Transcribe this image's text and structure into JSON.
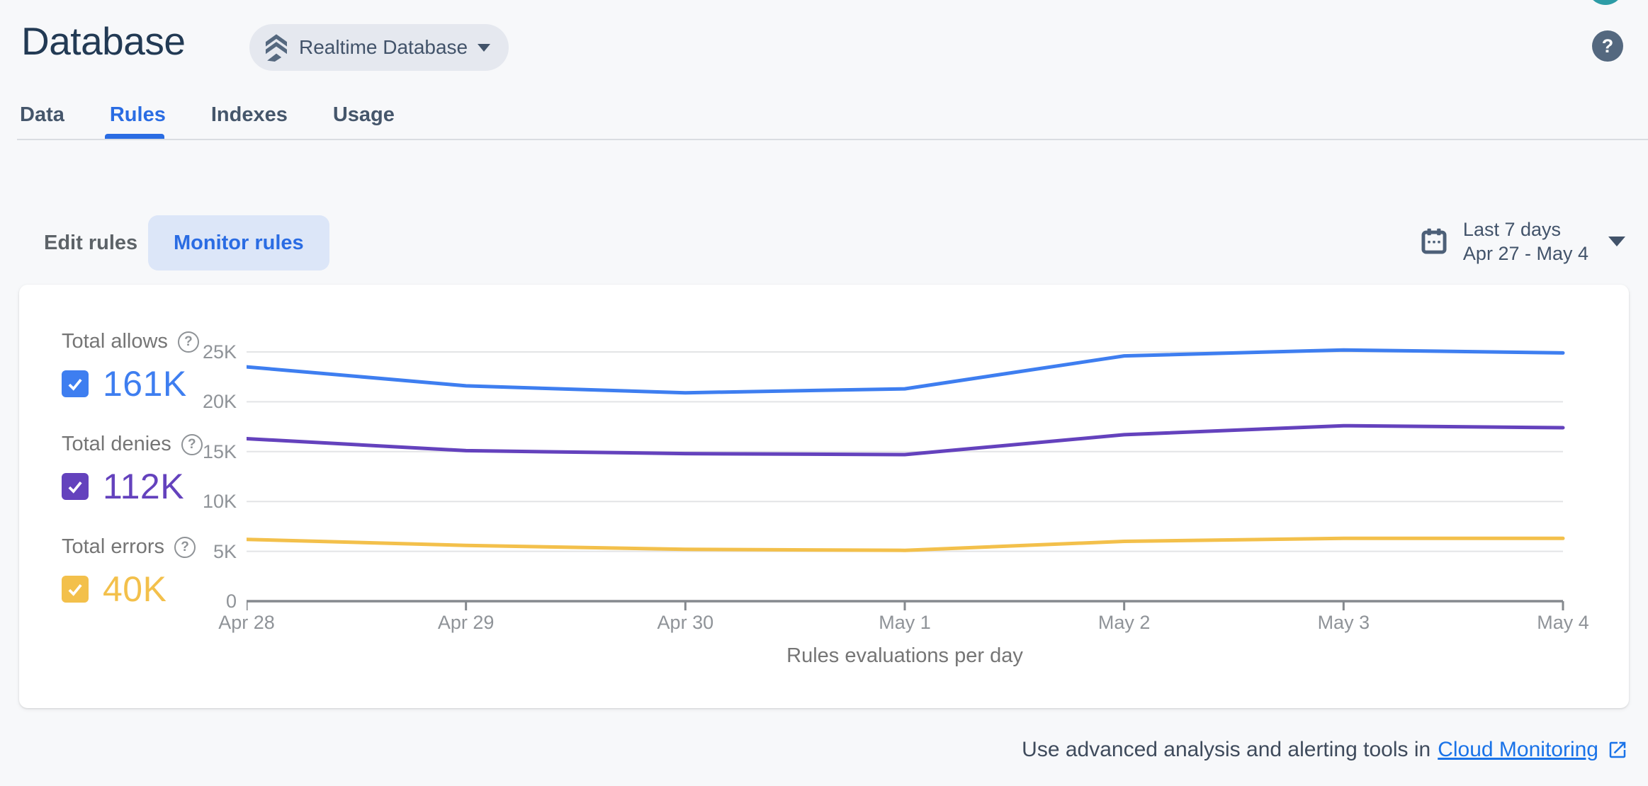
{
  "header": {
    "title": "Database",
    "selector_label": "Realtime Database",
    "help_glyph": "?"
  },
  "tabs": [
    {
      "label": "Data",
      "active": false
    },
    {
      "label": "Rules",
      "active": true
    },
    {
      "label": "Indexes",
      "active": false
    },
    {
      "label": "Usage",
      "active": false
    }
  ],
  "toolbar": {
    "edit_rules_label": "Edit rules",
    "monitor_rules_label": "Monitor rules",
    "date_range": {
      "label": "Last 7 days",
      "range": "Apr 27 - May 4"
    }
  },
  "legend": [
    {
      "label": "Total allows",
      "value": "161K",
      "color": "#3e7ef0",
      "checked": true
    },
    {
      "label": "Total denies",
      "value": "112K",
      "color": "#6442bd",
      "checked": true
    },
    {
      "label": "Total errors",
      "value": "40K",
      "color": "#f3c04b",
      "checked": true
    }
  ],
  "chart_data": {
    "type": "line",
    "title": "Rules evaluations per day",
    "x": [
      "Apr 28",
      "Apr 29",
      "Apr 30",
      "May 1",
      "May 2",
      "May 3",
      "May 4"
    ],
    "unit": "thousands of evaluations",
    "ylim": [
      0,
      25
    ],
    "yticks": [
      {
        "label": "0",
        "value": 0
      },
      {
        "label": "5K",
        "value": 5
      },
      {
        "label": "10K",
        "value": 10
      },
      {
        "label": "15K",
        "value": 15
      },
      {
        "label": "20K",
        "value": 20
      },
      {
        "label": "25K",
        "value": 25
      }
    ],
    "series": [
      {
        "name": "Total allows",
        "color": "#3e7ef0",
        "values": [
          23.5,
          21.6,
          20.9,
          21.3,
          24.6,
          25.2,
          24.9
        ]
      },
      {
        "name": "Total denies",
        "color": "#6442bd",
        "values": [
          16.3,
          15.1,
          14.8,
          14.7,
          16.7,
          17.6,
          17.4
        ]
      },
      {
        "name": "Total errors",
        "color": "#f3c04b",
        "values": [
          6.2,
          5.6,
          5.2,
          5.1,
          6.0,
          6.3,
          6.3
        ]
      }
    ],
    "grid": true,
    "legend_position": "left"
  },
  "footer": {
    "text": "Use advanced analysis and alerting tools in",
    "link_label": "Cloud Monitoring"
  },
  "colors": {
    "accent_blue": "#2a6ce3",
    "link_blue": "#1a73e8",
    "avatar_teal": "#2d9ca6",
    "help_slate": "#54687f",
    "grid_gray": "#e3e4e6",
    "axis_gray": "#85898e"
  }
}
